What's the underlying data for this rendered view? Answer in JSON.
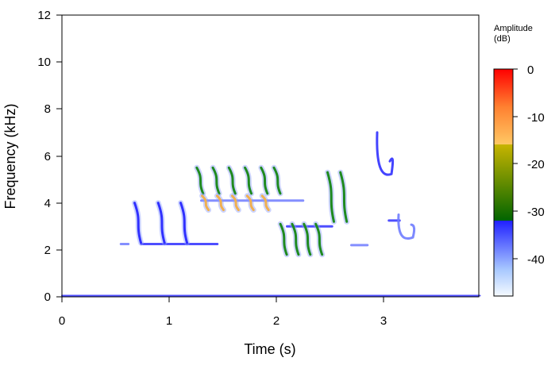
{
  "chart_data": {
    "type": "heatmap",
    "title": "",
    "xlabel": "Time (s)",
    "ylabel": "Frequency (kHz)",
    "xlim": [
      0,
      3.9
    ],
    "ylim": [
      0,
      12
    ],
    "x_ticks": [
      "0",
      "1",
      "2",
      "3"
    ],
    "y_ticks": [
      "0",
      "2",
      "4",
      "6",
      "8",
      "10",
      "12"
    ],
    "grid": false,
    "colorbar": {
      "title_line1": "Amplitude",
      "title_line2": "(dB)",
      "range": [
        -48,
        0
      ],
      "ticks": [
        "0",
        "-10",
        "-20",
        "-30",
        "-40"
      ],
      "bands": [
        {
          "from": -48,
          "to": -32,
          "colors": [
            "#f0f8ff",
            "#2020ff"
          ]
        },
        {
          "from": -32,
          "to": -16,
          "colors": [
            "#006400",
            "#c8b400"
          ]
        },
        {
          "from": -16,
          "to": 0,
          "colors": [
            "#ffc864",
            "#ff0000"
          ]
        }
      ]
    },
    "notes_sequences": [
      {
        "name": "down-sweeps",
        "t": [
          0.7,
          0.92,
          1.13
        ],
        "f_high": 4.0,
        "f_low": 2.3,
        "level": -34
      },
      {
        "name": "upper-notes",
        "t": [
          1.28,
          1.43,
          1.58,
          1.73,
          1.88,
          2.0
        ],
        "f_high": 5.5,
        "f_low": 4.4,
        "level": -28
      },
      {
        "name": "trill-4k",
        "t": [
          1.33,
          1.47,
          1.61,
          1.75,
          1.89
        ],
        "f_high": 4.3,
        "f_low": 3.7,
        "level": -18
      },
      {
        "name": "descending-notes",
        "t": [
          2.06,
          2.17,
          2.28,
          2.39
        ],
        "f_high": 3.1,
        "f_low": 1.8,
        "level": -30
      },
      {
        "name": "up-sweeps",
        "t": [
          2.5,
          2.62
        ],
        "f_high": 5.3,
        "f_low": 3.2,
        "level": -28
      }
    ],
    "tones": [
      {
        "t_start": 0.55,
        "t_end": 0.62,
        "f": 2.25,
        "level": -40
      },
      {
        "t_start": 0.74,
        "t_end": 1.45,
        "f": 2.25,
        "level": -34
      },
      {
        "t_start": 1.3,
        "t_end": 2.25,
        "f": 4.1,
        "level": -38
      },
      {
        "t_start": 2.1,
        "t_end": 2.52,
        "f": 3.0,
        "level": -32
      },
      {
        "t_start": 2.7,
        "t_end": 2.85,
        "f": 2.2,
        "level": -40
      },
      {
        "t_start": 3.05,
        "t_end": 3.15,
        "f": 3.25,
        "level": -36
      },
      {
        "t_start": 0.0,
        "t_end": 3.9,
        "f": 0.05,
        "level": -36
      }
    ],
    "arcs": [
      {
        "t_center": 3.0,
        "f_top": 7.0,
        "f_bottom": 5.3,
        "level": -34
      },
      {
        "t_center": 3.2,
        "f_top": 3.5,
        "f_bottom": 2.6,
        "level": -40
      }
    ]
  }
}
